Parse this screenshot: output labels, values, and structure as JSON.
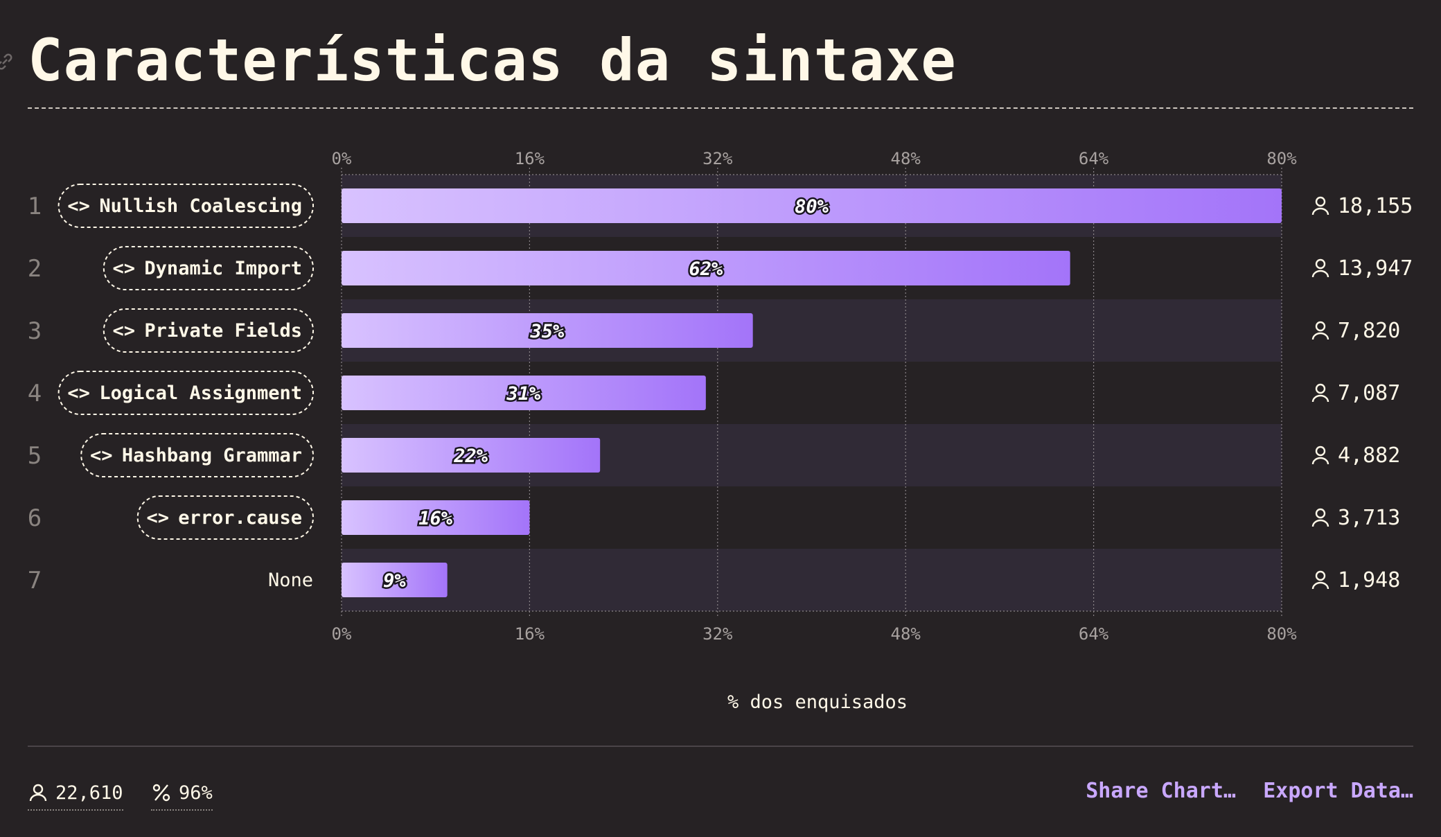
{
  "page": {
    "title": "Características da sintaxe"
  },
  "chart_data": {
    "type": "bar",
    "orientation": "horizontal",
    "xlabel": "% dos enquisados",
    "xlim": [
      0,
      80
    ],
    "xticks": [
      "0%",
      "16%",
      "32%",
      "48%",
      "64%",
      "80%"
    ],
    "grid": true,
    "categories": [
      "Nullish Coalescing",
      "Dynamic Import",
      "Private Fields",
      "Logical Assignment",
      "Hashbang Grammar",
      "error.cause",
      "None"
    ],
    "ranks": [
      "1",
      "2",
      "3",
      "4",
      "5",
      "6",
      "7"
    ],
    "values": [
      80,
      62,
      35,
      31,
      22,
      16,
      9
    ],
    "value_labels": [
      "80%",
      "62%",
      "35%",
      "31%",
      "22%",
      "16%",
      "9%"
    ],
    "counts": [
      "18,155",
      "13,947",
      "7,820",
      "7,087",
      "4,882",
      "3,713",
      "1,948"
    ],
    "tagged": [
      true,
      true,
      true,
      true,
      true,
      true,
      false
    ]
  },
  "footer": {
    "respondents": "22,610",
    "percentage": "96%",
    "share_label": "Share Chart…",
    "export_label": "Export Data…"
  },
  "colors": {
    "background": "#262224",
    "bar_start": "#d8c2ff",
    "bar_end": "#a374f9",
    "accent": "#c9a8ff",
    "text": "#fff8e8"
  },
  "icons": {
    "respondents": "user-icon",
    "percentage": "percent-icon",
    "tag": "code-brackets-icon",
    "title": "link-icon"
  }
}
